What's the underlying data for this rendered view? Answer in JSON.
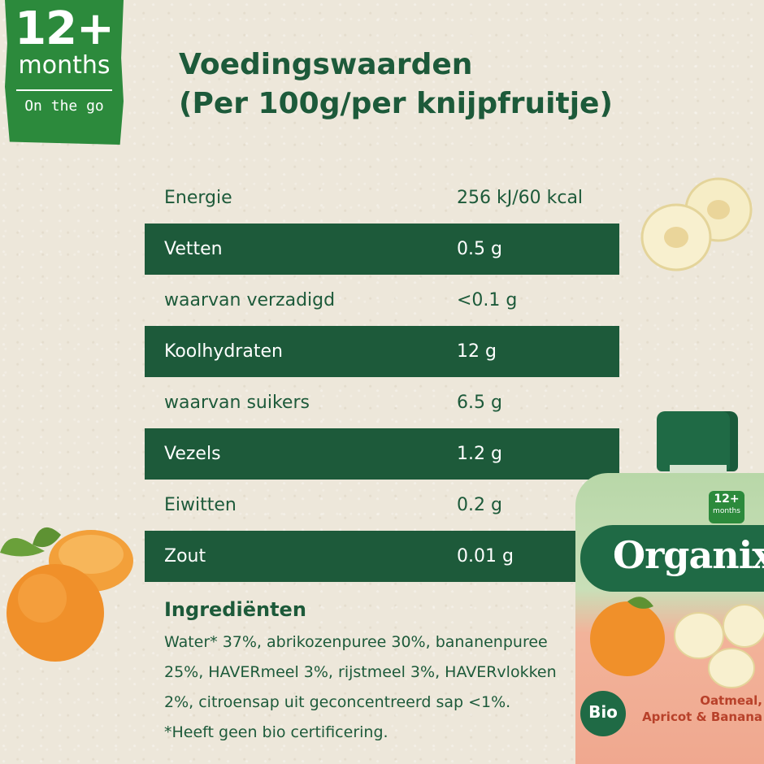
{
  "badge": {
    "age": "12+",
    "unit": "months",
    "tagline": "On the go"
  },
  "title": {
    "line1": "Voedingswaarden",
    "line2": "(Per 100g/per knijpfruitje)"
  },
  "nutrition": [
    {
      "label": "Energie",
      "value": "256 kJ/60 kcal"
    },
    {
      "label": "Vetten",
      "value": "0.5 g"
    },
    {
      "label": "waarvan verzadigd",
      "value": "<0.1 g"
    },
    {
      "label": "Koolhydraten",
      "value": "12 g"
    },
    {
      "label": "waarvan suikers",
      "value": "6.5 g"
    },
    {
      "label": "Vezels",
      "value": "1.2 g"
    },
    {
      "label": "Eiwitten",
      "value": "0.2 g"
    },
    {
      "label": "Zout",
      "value": "0.01 g"
    }
  ],
  "ingredients": {
    "heading": "Ingrediënten",
    "line1": "Water* 37%, abrikozenpuree 30%, bananenpuree",
    "line2": "25%, HAVERmeel 3%, rijstmeel 3%, HAVERvlokken",
    "line3": "2%, citroensap uit geconcentreerd sap <1%.",
    "note": "*Heeft geen bio certificering."
  },
  "pouch": {
    "brand": "Organix",
    "mini_badge_age": "12+",
    "mini_badge_unit": "months",
    "bio": "Bio",
    "flavour_line1": "Oatmeal,",
    "flavour_line2": "Apricot & Banana"
  },
  "colors": {
    "dark_green": "#1d5a3a",
    "badge_green": "#2c8a3c",
    "background": "#ede7da",
    "apricot_orange": "#f0902a"
  },
  "icons": [
    "banana-slices-icon",
    "apricot-icon",
    "pouch-product-image"
  ]
}
